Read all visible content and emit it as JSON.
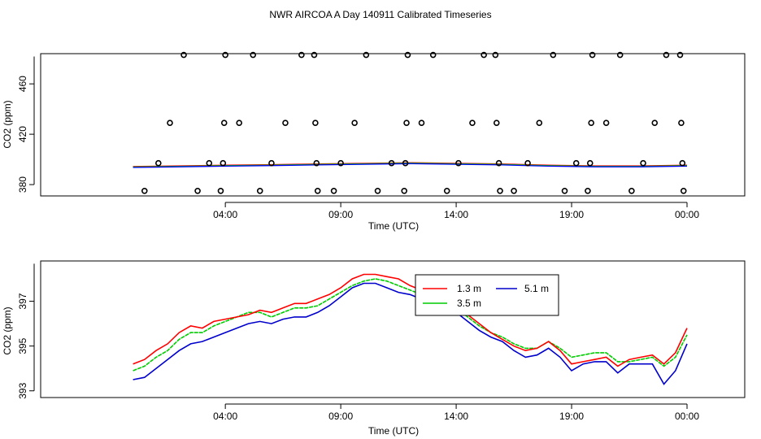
{
  "title": "NWR AIRCOA A  Day 140911  Calibrated Timeseries",
  "chart_data": [
    {
      "type": "scatter",
      "xlabel": "Time (UTC)",
      "ylabel": "CO2 (ppm)",
      "x_unit": "hours (UTC)",
      "xlim": [
        -4,
        26.5
      ],
      "ylim": [
        371,
        484
      ],
      "xtick_values": [
        4,
        9,
        14,
        19,
        24
      ],
      "xtick_labels": [
        "04:00",
        "09:00",
        "14:00",
        "19:00",
        "00:00"
      ],
      "ytick_values": [
        380,
        420,
        460
      ],
      "ytick_labels": [
        "380",
        "420",
        "460"
      ],
      "grid": false,
      "legend": "none",
      "calibration_points": [
        {
          "x": 0.5,
          "y": 375
        },
        {
          "x": 1.1,
          "y": 397
        },
        {
          "x": 1.6,
          "y": 429
        },
        {
          "x": 2.2,
          "y": 483
        },
        {
          "x": 2.8,
          "y": 375
        },
        {
          "x": 3.3,
          "y": 397
        },
        {
          "x": 3.8,
          "y": 375
        },
        {
          "x": 3.9,
          "y": 397
        },
        {
          "x": 3.95,
          "y": 429
        },
        {
          "x": 4.0,
          "y": 483
        },
        {
          "x": 4.6,
          "y": 429
        },
        {
          "x": 5.2,
          "y": 483
        },
        {
          "x": 5.5,
          "y": 375
        },
        {
          "x": 6.0,
          "y": 397
        },
        {
          "x": 6.6,
          "y": 429
        },
        {
          "x": 7.3,
          "y": 483
        },
        {
          "x": 7.85,
          "y": 483
        },
        {
          "x": 7.9,
          "y": 429
        },
        {
          "x": 7.95,
          "y": 397
        },
        {
          "x": 8.0,
          "y": 375
        },
        {
          "x": 8.7,
          "y": 375
        },
        {
          "x": 9.0,
          "y": 397
        },
        {
          "x": 9.6,
          "y": 429
        },
        {
          "x": 10.1,
          "y": 483
        },
        {
          "x": 10.6,
          "y": 375
        },
        {
          "x": 11.2,
          "y": 397
        },
        {
          "x": 11.75,
          "y": 375
        },
        {
          "x": 11.8,
          "y": 397
        },
        {
          "x": 11.85,
          "y": 429
        },
        {
          "x": 11.9,
          "y": 483
        },
        {
          "x": 12.5,
          "y": 429
        },
        {
          "x": 13.0,
          "y": 483
        },
        {
          "x": 13.6,
          "y": 375
        },
        {
          "x": 14.1,
          "y": 397
        },
        {
          "x": 14.7,
          "y": 429
        },
        {
          "x": 15.2,
          "y": 483
        },
        {
          "x": 15.7,
          "y": 483
        },
        {
          "x": 15.75,
          "y": 429
        },
        {
          "x": 15.85,
          "y": 397
        },
        {
          "x": 15.9,
          "y": 375
        },
        {
          "x": 16.5,
          "y": 375
        },
        {
          "x": 17.1,
          "y": 397
        },
        {
          "x": 17.6,
          "y": 429
        },
        {
          "x": 18.2,
          "y": 483
        },
        {
          "x": 18.7,
          "y": 375
        },
        {
          "x": 19.2,
          "y": 397
        },
        {
          "x": 19.7,
          "y": 375
        },
        {
          "x": 19.8,
          "y": 397
        },
        {
          "x": 19.85,
          "y": 429
        },
        {
          "x": 19.9,
          "y": 483
        },
        {
          "x": 20.5,
          "y": 429
        },
        {
          "x": 21.1,
          "y": 483
        },
        {
          "x": 21.6,
          "y": 375
        },
        {
          "x": 22.1,
          "y": 397
        },
        {
          "x": 22.6,
          "y": 429
        },
        {
          "x": 23.1,
          "y": 483
        },
        {
          "x": 23.7,
          "y": 483
        },
        {
          "x": 23.75,
          "y": 429
        },
        {
          "x": 23.8,
          "y": 397
        },
        {
          "x": 23.85,
          "y": 375
        }
      ],
      "baseline": {
        "colors": [
          "#ff0000",
          "#00cc00",
          "#0000ff"
        ],
        "x": [
          0,
          2,
          4,
          6,
          8,
          10,
          12,
          14,
          16,
          18,
          20,
          22,
          24
        ],
        "y": [
          394,
          394.5,
          395,
          395.5,
          396,
          396.5,
          397,
          396.5,
          396,
          395,
          394.5,
          394.5,
          395
        ]
      }
    },
    {
      "type": "line",
      "xlabel": "Time (UTC)",
      "ylabel": "CO2 (ppm)",
      "x_unit": "hours (UTC)",
      "xlim": [
        -4,
        26.5
      ],
      "ylim": [
        392.7,
        398.8
      ],
      "xtick_values": [
        4,
        9,
        14,
        19,
        24
      ],
      "xtick_labels": [
        "04:00",
        "09:00",
        "14:00",
        "19:00",
        "00:00"
      ],
      "ytick_values": [
        393,
        395,
        397
      ],
      "ytick_labels": [
        "393",
        "395",
        "397"
      ],
      "grid": false,
      "legend": "top-center",
      "x": [
        0,
        0.5,
        1,
        1.5,
        2,
        2.5,
        3,
        3.5,
        4,
        4.5,
        5,
        5.5,
        6,
        6.5,
        7,
        7.5,
        8,
        8.5,
        9,
        9.5,
        10,
        10.5,
        11,
        11.5,
        12,
        12.5,
        13,
        13.5,
        14,
        14.5,
        15,
        15.5,
        16,
        16.5,
        17,
        17.5,
        18,
        18.5,
        19,
        19.5,
        20,
        20.5,
        21,
        21.5,
        22,
        22.5,
        23,
        23.5,
        24
      ],
      "series": [
        {
          "name": "1.3 m",
          "color": "#ff0000",
          "values": [
            394.2,
            394.4,
            394.8,
            395.1,
            395.6,
            395.9,
            395.8,
            396.1,
            396.2,
            396.3,
            396.4,
            396.6,
            396.5,
            396.7,
            396.9,
            396.9,
            397.1,
            397.3,
            397.6,
            398.0,
            398.2,
            398.2,
            398.1,
            398.0,
            397.7,
            397.5,
            397.4,
            397.1,
            396.8,
            396.4,
            396.0,
            395.6,
            395.3,
            395.0,
            394.8,
            394.9,
            395.2,
            394.8,
            394.2,
            394.3,
            394.4,
            394.5,
            394.1,
            394.4,
            394.5,
            394.6,
            394.2,
            394.7,
            395.8
          ]
        },
        {
          "name": "3.5 m",
          "color": "#00cc00",
          "values": [
            393.9,
            394.1,
            394.5,
            394.8,
            395.3,
            395.6,
            395.6,
            395.9,
            396.1,
            396.3,
            396.5,
            396.5,
            396.3,
            396.5,
            396.7,
            396.7,
            396.8,
            397.1,
            397.4,
            397.7,
            397.9,
            398.0,
            397.9,
            397.7,
            397.5,
            397.3,
            397.2,
            397.0,
            396.7,
            396.3,
            395.9,
            395.6,
            395.4,
            395.1,
            394.9,
            394.9,
            395.2,
            394.9,
            394.5,
            394.6,
            394.7,
            394.7,
            394.3,
            394.3,
            394.4,
            394.5,
            394.1,
            394.5,
            395.5
          ]
        },
        {
          "name": "5.1 m",
          "color": "#0000cc",
          "values": [
            393.5,
            393.6,
            394.0,
            394.4,
            394.8,
            395.1,
            395.2,
            395.4,
            395.6,
            395.8,
            396.0,
            396.1,
            396.0,
            396.2,
            396.3,
            396.3,
            396.5,
            396.8,
            397.2,
            397.6,
            397.8,
            397.8,
            397.6,
            397.4,
            397.3,
            397.1,
            397.0,
            396.8,
            396.5,
            396.1,
            395.7,
            395.4,
            395.2,
            394.8,
            394.5,
            394.6,
            394.9,
            394.5,
            393.9,
            394.2,
            394.3,
            394.3,
            393.8,
            394.2,
            394.2,
            394.2,
            393.3,
            393.9,
            395.1
          ]
        }
      ],
      "annotations": []
    }
  ]
}
